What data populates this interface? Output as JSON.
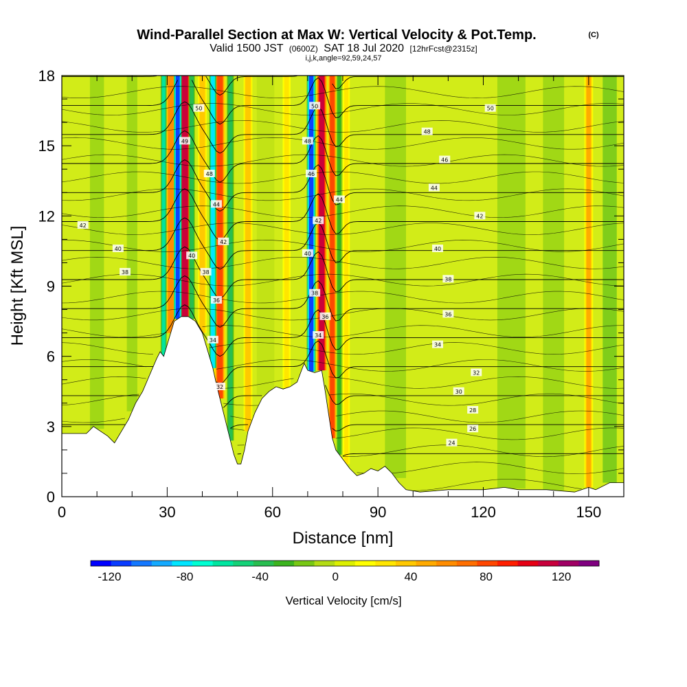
{
  "chart_data": {
    "type": "heatmap",
    "title": "Wind-Parallel Section at Max W: Vertical Velocity & Pot.Temp.",
    "title_mark": "(C)",
    "subtitle_parts": [
      "Valid 1500 JST",
      "(0600Z)",
      "SAT 18 Jul 2020",
      "[12hrFcst@2315z]"
    ],
    "subtitle2": "i,j,k,angle=92,59,24,57",
    "xlabel": "Distance [nm]",
    "ylabel": "Height [Kft MSL]",
    "xlim": [
      0,
      160
    ],
    "ylim": [
      0,
      18
    ],
    "xticks": [
      0,
      30,
      60,
      90,
      120,
      150
    ],
    "yticks": [
      0,
      3,
      6,
      9,
      12,
      15,
      18
    ],
    "background_field": "upward motion positive (warm colors), downward motion negative (cool colors)",
    "colorbar": {
      "label": "Vertical Velocity [cm/s]",
      "ticks": [
        -120,
        -80,
        -40,
        0,
        40,
        80,
        120
      ],
      "min": -130,
      "max": 140,
      "colors": [
        "#0000ff",
        "#0a3cff",
        "#1478ff",
        "#14aaff",
        "#00e6ff",
        "#00ffd2",
        "#00e6a0",
        "#14d278",
        "#28be50",
        "#3cb41e",
        "#78c814",
        "#b4dc14",
        "#dcf000",
        "#ffff00",
        "#ffe600",
        "#ffc800",
        "#ffaa00",
        "#ff8c00",
        "#ff6e00",
        "#ff4600",
        "#ff1e00",
        "#e60014",
        "#c8003c",
        "#a00064",
        "#800080"
      ]
    },
    "terrain": [
      [
        0,
        2.7
      ],
      [
        7,
        2.7
      ],
      [
        9,
        3.0
      ],
      [
        13,
        2.6
      ],
      [
        15,
        2.3
      ],
      [
        17,
        2.8
      ],
      [
        19,
        3.3
      ],
      [
        21,
        4.0
      ],
      [
        23,
        4.5
      ],
      [
        25,
        5.2
      ],
      [
        27,
        5.9
      ],
      [
        28,
        6.2
      ],
      [
        29,
        6.0
      ],
      [
        30,
        6.5
      ],
      [
        32,
        7.5
      ],
      [
        34,
        7.7
      ],
      [
        36,
        7.7
      ],
      [
        38,
        7.5
      ],
      [
        40,
        7.0
      ],
      [
        41,
        6.5
      ],
      [
        42,
        6.0
      ],
      [
        43,
        5.5
      ],
      [
        44,
        4.8
      ],
      [
        45,
        4.2
      ],
      [
        46,
        3.6
      ],
      [
        47,
        3.0
      ],
      [
        48,
        2.4
      ],
      [
        49,
        1.8
      ],
      [
        50,
        1.4
      ],
      [
        51,
        1.4
      ],
      [
        52,
        2.0
      ],
      [
        53,
        2.8
      ],
      [
        55,
        3.6
      ],
      [
        57,
        4.2
      ],
      [
        59,
        4.5
      ],
      [
        61,
        4.7
      ],
      [
        63,
        4.6
      ],
      [
        65,
        4.7
      ],
      [
        67,
        4.9
      ],
      [
        68,
        5.3
      ],
      [
        69,
        5.7
      ],
      [
        70,
        5.4
      ],
      [
        72,
        5.3
      ],
      [
        74,
        5.4
      ],
      [
        75,
        4.5
      ],
      [
        76,
        3.5
      ],
      [
        77,
        2.5
      ],
      [
        78,
        2.0
      ],
      [
        80,
        1.6
      ],
      [
        82,
        1.2
      ],
      [
        84,
        0.9
      ],
      [
        86,
        1.0
      ],
      [
        88,
        1.2
      ],
      [
        90,
        1.1
      ],
      [
        92,
        1.3
      ],
      [
        94,
        1.0
      ],
      [
        96,
        0.6
      ],
      [
        98,
        0.3
      ],
      [
        102,
        0.2
      ],
      [
        110,
        0.3
      ],
      [
        120,
        0.3
      ],
      [
        126,
        0.4
      ],
      [
        130,
        0.3
      ],
      [
        138,
        0.3
      ],
      [
        146,
        0.2
      ],
      [
        150,
        0.4
      ],
      [
        152,
        0.3
      ],
      [
        156,
        0.6
      ],
      [
        160,
        0.6
      ]
    ],
    "updraft_bands": [
      {
        "x": 31,
        "w": 2.4,
        "value": 60
      },
      {
        "x": 35,
        "w": 3.0,
        "value": 110
      },
      {
        "x": 40,
        "w": 2.0,
        "value": 40
      },
      {
        "x": 45,
        "w": 2.5,
        "value": 80
      },
      {
        "x": 53,
        "w": 2.0,
        "value": 40
      },
      {
        "x": 64,
        "w": 1.8,
        "value": 30
      },
      {
        "x": 74,
        "w": 2.4,
        "value": 110
      },
      {
        "x": 77,
        "w": 2.0,
        "value": 80
      },
      {
        "x": 81,
        "w": 1.6,
        "value": 30
      },
      {
        "x": 150,
        "w": 2.0,
        "value": 50
      }
    ],
    "downdraft_bands": [
      {
        "x": 29,
        "w": 1.4,
        "value": -60
      },
      {
        "x": 33,
        "w": 1.8,
        "value": -110
      },
      {
        "x": 37,
        "w": 1.4,
        "value": -40
      },
      {
        "x": 43,
        "w": 1.6,
        "value": -80
      },
      {
        "x": 48,
        "w": 1.6,
        "value": -40
      },
      {
        "x": 71,
        "w": 2.0,
        "value": -110
      },
      {
        "x": 79,
        "w": 1.4,
        "value": -30
      }
    ],
    "theta_contours": [
      24,
      26,
      28,
      30,
      32,
      34,
      36,
      38,
      40,
      42,
      44,
      46,
      48,
      50
    ],
    "contour_labels": [
      {
        "text": "42",
        "x": 6,
        "y": 11.6
      },
      {
        "text": "40",
        "x": 16,
        "y": 10.6
      },
      {
        "text": "38",
        "x": 18,
        "y": 9.6
      },
      {
        "text": "50",
        "x": 39,
        "y": 16.6
      },
      {
        "text": "49",
        "x": 35,
        "y": 15.2
      },
      {
        "text": "48",
        "x": 42,
        "y": 13.8
      },
      {
        "text": "44",
        "x": 44,
        "y": 12.5
      },
      {
        "text": "42",
        "x": 46,
        "y": 10.9
      },
      {
        "text": "40",
        "x": 37,
        "y": 10.3
      },
      {
        "text": "38",
        "x": 41,
        "y": 9.6
      },
      {
        "text": "36",
        "x": 44,
        "y": 8.4
      },
      {
        "text": "34",
        "x": 43,
        "y": 6.7
      },
      {
        "text": "32",
        "x": 45,
        "y": 4.7
      },
      {
        "text": "50",
        "x": 72,
        "y": 16.7
      },
      {
        "text": "48",
        "x": 70,
        "y": 15.2
      },
      {
        "text": "46",
        "x": 71,
        "y": 13.8
      },
      {
        "text": "44",
        "x": 79,
        "y": 12.7
      },
      {
        "text": "42",
        "x": 73,
        "y": 11.8
      },
      {
        "text": "40",
        "x": 70,
        "y": 10.4
      },
      {
        "text": "38",
        "x": 72,
        "y": 8.7
      },
      {
        "text": "36",
        "x": 75,
        "y": 7.7
      },
      {
        "text": "34",
        "x": 73,
        "y": 6.9
      },
      {
        "text": "50",
        "x": 122,
        "y": 16.6
      },
      {
        "text": "48",
        "x": 104,
        "y": 15.6
      },
      {
        "text": "46",
        "x": 109,
        "y": 14.4
      },
      {
        "text": "44",
        "x": 106,
        "y": 13.2
      },
      {
        "text": "42",
        "x": 119,
        "y": 12.0
      },
      {
        "text": "40",
        "x": 107,
        "y": 10.6
      },
      {
        "text": "38",
        "x": 110,
        "y": 9.3
      },
      {
        "text": "36",
        "x": 110,
        "y": 7.8
      },
      {
        "text": "34",
        "x": 107,
        "y": 6.5
      },
      {
        "text": "32",
        "x": 118,
        "y": 5.3
      },
      {
        "text": "30",
        "x": 113,
        "y": 4.5
      },
      {
        "text": "28",
        "x": 117,
        "y": 3.7
      },
      {
        "text": "26",
        "x": 117,
        "y": 2.9
      },
      {
        "text": "24",
        "x": 111,
        "y": 2.3
      }
    ]
  }
}
